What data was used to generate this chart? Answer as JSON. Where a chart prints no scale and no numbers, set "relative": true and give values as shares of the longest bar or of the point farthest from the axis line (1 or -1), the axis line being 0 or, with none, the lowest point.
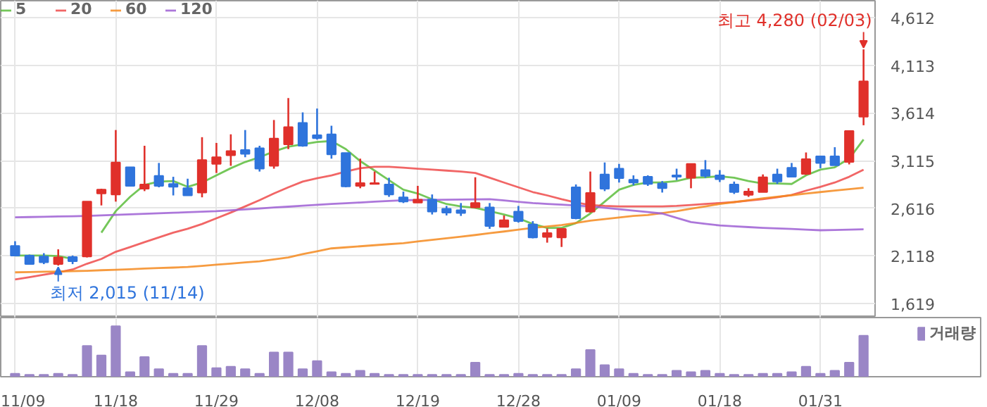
{
  "chart_data": [
    {
      "type": "candlestick",
      "categories": [
        null,
        null,
        null,
        null,
        null,
        null,
        null,
        null,
        null,
        null,
        null,
        null,
        null,
        null,
        null,
        null,
        null,
        null,
        null,
        null,
        null,
        null,
        null,
        null,
        null,
        null,
        null,
        null,
        null,
        null,
        null,
        null,
        null,
        null,
        null,
        null,
        null,
        null,
        null,
        null,
        null,
        null,
        null,
        null,
        null,
        null,
        null,
        null,
        null,
        null,
        null,
        null,
        null,
        null,
        null,
        null,
        null,
        null,
        null,
        null
      ],
      "ohlc": [
        [
          2220,
          2270,
          2120,
          2120
        ],
        [
          2120,
          2130,
          2030,
          2030
        ],
        [
          2110,
          2145,
          2030,
          2050
        ],
        [
          2030,
          2185,
          2015,
          2100
        ],
        [
          2105,
          2120,
          2030,
          2060
        ],
        [
          2110,
          2685,
          2100,
          2685
        ],
        [
          2770,
          2820,
          2645,
          2810
        ],
        [
          2760,
          3435,
          2685,
          3095
        ],
        [
          3045,
          3045,
          2850,
          2850
        ],
        [
          2820,
          3270,
          2795,
          2865
        ],
        [
          2955,
          3090,
          2835,
          2850
        ],
        [
          2870,
          2945,
          2750,
          2840
        ],
        [
          2825,
          2925,
          2750,
          2750
        ],
        [
          2780,
          3360,
          2730,
          3120
        ],
        [
          3080,
          3300,
          2985,
          3150
        ],
        [
          3170,
          3390,
          3060,
          3215
        ],
        [
          3225,
          3435,
          3150,
          3185
        ],
        [
          3245,
          3270,
          3000,
          3030
        ],
        [
          3060,
          3540,
          3030,
          3345
        ],
        [
          3285,
          3770,
          3235,
          3465
        ],
        [
          3510,
          3620,
          3260,
          3270
        ],
        [
          3380,
          3660,
          3335,
          3350
        ],
        [
          3390,
          3480,
          3135,
          3180
        ],
        [
          3195,
          3195,
          2835,
          2845
        ],
        [
          2850,
          3135,
          2825,
          2880
        ],
        [
          2870,
          3000,
          2870,
          2880
        ],
        [
          2865,
          2935,
          2735,
          2760
        ],
        [
          2730,
          2790,
          2670,
          2685
        ],
        [
          2675,
          2850,
          2675,
          2705
        ],
        [
          2705,
          2760,
          2550,
          2580
        ],
        [
          2610,
          2640,
          2540,
          2570
        ],
        [
          2595,
          2670,
          2535,
          2565
        ],
        [
          2625,
          2940,
          2615,
          2670
        ],
        [
          2625,
          2670,
          2400,
          2430
        ],
        [
          2420,
          2540,
          2420,
          2490
        ],
        [
          2580,
          2640,
          2465,
          2480
        ],
        [
          2445,
          2480,
          2300,
          2310
        ],
        [
          2315,
          2405,
          2255,
          2355
        ],
        [
          2310,
          2400,
          2210,
          2400
        ],
        [
          2835,
          2865,
          2500,
          2510
        ],
        [
          2580,
          3000,
          2570,
          2775
        ],
        [
          2970,
          3095,
          2795,
          2820
        ],
        [
          3030,
          3080,
          2885,
          2930
        ],
        [
          2915,
          2960,
          2855,
          2885
        ],
        [
          2945,
          2960,
          2850,
          2870
        ],
        [
          2875,
          2900,
          2780,
          2825
        ],
        [
          2960,
          3030,
          2910,
          2945
        ],
        [
          2935,
          3080,
          2825,
          3080
        ],
        [
          3015,
          3120,
          2935,
          2955
        ],
        [
          2960,
          3015,
          2890,
          2920
        ],
        [
          2865,
          2895,
          2765,
          2785
        ],
        [
          2755,
          2825,
          2735,
          2790
        ],
        [
          2785,
          2970,
          2785,
          2940
        ],
        [
          2970,
          3030,
          2870,
          2895
        ],
        [
          3040,
          3090,
          2945,
          2945
        ],
        [
          2975,
          3200,
          2965,
          3130
        ],
        [
          3160,
          3160,
          3035,
          3090
        ],
        [
          3160,
          3255,
          3065,
          3065
        ],
        [
          3100,
          3425,
          3075,
          3425
        ],
        [
          3575,
          4280,
          3485,
          3945
        ]
      ],
      "series": [
        {
          "name": "5",
          "type": "line",
          "color": "#5cbd3c",
          "values": [
            2120,
            2120,
            2120,
            2115,
            2085,
            null,
            2360,
            2585,
            2735,
            2860,
            2895,
            2900,
            2840,
            2885,
            2960,
            3035,
            3100,
            3150,
            3210,
            3260,
            3285,
            3310,
            3320,
            3235,
            3110,
            3010,
            2910,
            2810,
            2770,
            2710,
            2660,
            2635,
            2620,
            2585,
            2550,
            2510,
            2450,
            2410,
            2410,
            2460,
            2560,
            2685,
            2810,
            2860,
            2885,
            2885,
            2900,
            2935,
            2940,
            2950,
            2935,
            2900,
            2875,
            2875,
            2870,
            2960,
            3020,
            3045,
            3135,
            3335
          ]
        },
        {
          "name": "20",
          "type": "line",
          "color": "#ef4b4b",
          "values": [
            1869,
            1894,
            1919,
            1944,
            1974,
            2034,
            2084,
            2159,
            2209,
            2260,
            2310,
            2360,
            2400,
            2450,
            2510,
            2570,
            2635,
            2700,
            2770,
            2835,
            2895,
            2930,
            2960,
            3000,
            3035,
            3050,
            3050,
            3040,
            3030,
            3020,
            3010,
            3000,
            2985,
            2935,
            2885,
            2835,
            2785,
            2750,
            2710,
            2675,
            2650,
            2640,
            2635,
            2635,
            2635,
            2635,
            2640,
            2650,
            2660,
            2670,
            2680,
            2695,
            2710,
            2730,
            2755,
            2800,
            2840,
            2885,
            2945,
            3020
          ]
        },
        {
          "name": "60",
          "type": "line",
          "color": "#f58a1f",
          "values": [
            1944,
            1947,
            1950,
            1953,
            1957,
            1960,
            1966,
            1971,
            1977,
            1983,
            1989,
            1994,
            2000,
            2012,
            2024,
            2036,
            2048,
            2060,
            2080,
            2100,
            2135,
            2165,
            2195,
            2206,
            2217,
            2228,
            2239,
            2250,
            2267,
            2284,
            2301,
            2318,
            2335,
            2354,
            2372,
            2391,
            2410,
            2425,
            2440,
            2462,
            2485,
            2502,
            2518,
            2535,
            2545,
            2565,
            2585,
            2610,
            2635,
            2660,
            2680,
            2700,
            2720,
            2736,
            2752,
            2769,
            2785,
            2800,
            2815,
            2830
          ]
        },
        {
          "name": "120",
          "type": "line",
          "color": "#9d5fd3",
          "values": [
            2520,
            2523,
            2526,
            2529,
            2532,
            2535,
            2541,
            2546,
            2552,
            2557,
            2563,
            2568,
            2574,
            2580,
            2585,
            2594,
            2604,
            2613,
            2623,
            2632,
            2642,
            2651,
            2660,
            2668,
            2676,
            2684,
            2692,
            2700,
            2702,
            2703,
            2705,
            2707,
            2708,
            2710,
            2697,
            2683,
            2670,
            2661,
            2653,
            2644,
            2635,
            2620,
            2605,
            2590,
            2575,
            2560,
            2515,
            2470,
            2452,
            2435,
            2427,
            2418,
            2410,
            2404,
            2398,
            2391,
            2385,
            2388,
            2392,
            2395
          ]
        }
      ],
      "ylim": [
        1470,
        4790
      ],
      "yticks": [
        {
          "value": 1619,
          "label": "1,619"
        },
        {
          "value": 2118,
          "label": "2,118"
        },
        {
          "value": 2616,
          "label": "2,616"
        },
        {
          "value": 3115,
          "label": "3,115"
        },
        {
          "value": 3614,
          "label": "3,614"
        },
        {
          "value": 4113,
          "label": "4,113"
        },
        {
          "value": 4612,
          "label": "4,612"
        }
      ],
      "annotations": [
        "최고 4,280 (02/03)",
        "최저 2,015 (11/14)"
      ],
      "legend": "top left",
      "grid": true,
      "tick_labels": "y"
    },
    {
      "type": "bar",
      "categories": [
        "11/09",
        null,
        null,
        null,
        null,
        null,
        null,
        "11/18",
        null,
        null,
        null,
        null,
        null,
        null,
        "11/29",
        null,
        null,
        null,
        null,
        null,
        null,
        "12/08",
        null,
        null,
        null,
        null,
        null,
        null,
        "12/19",
        null,
        null,
        null,
        null,
        null,
        null,
        "12/28",
        null,
        null,
        null,
        null,
        null,
        null,
        "01/09",
        null,
        null,
        null,
        null,
        null,
        null,
        "01/18",
        null,
        null,
        null,
        null,
        null,
        null,
        "01/31",
        null,
        null,
        null
      ],
      "series": [
        {
          "name": "거래량",
          "color": "#9a86c6",
          "values": [
            0.06,
            0.04,
            0.04,
            0.06,
            0.04,
            0.61,
            0.42,
            1,
            0.09,
            0.39,
            0.15,
            0.06,
            0.06,
            0.61,
            0.17,
            0.2,
            0.15,
            0.06,
            0.48,
            0.48,
            0.15,
            0.31,
            0.09,
            0.06,
            0.12,
            0.06,
            0.04,
            0.04,
            0.04,
            0.04,
            0.04,
            0.04,
            0.28,
            0.04,
            0.04,
            0.06,
            0.04,
            0.04,
            0.04,
            0.15,
            0.53,
            0.23,
            0.15,
            0.06,
            0.04,
            0.04,
            0.12,
            0.09,
            0.12,
            0.06,
            0.04,
            0.04,
            0.06,
            0.06,
            0.09,
            0.2,
            0.06,
            0.12,
            0.28,
            0.81
          ]
        }
      ],
      "relative": true,
      "legend": "top right",
      "grid": "x",
      "tick_labels": "x"
    }
  ]
}
